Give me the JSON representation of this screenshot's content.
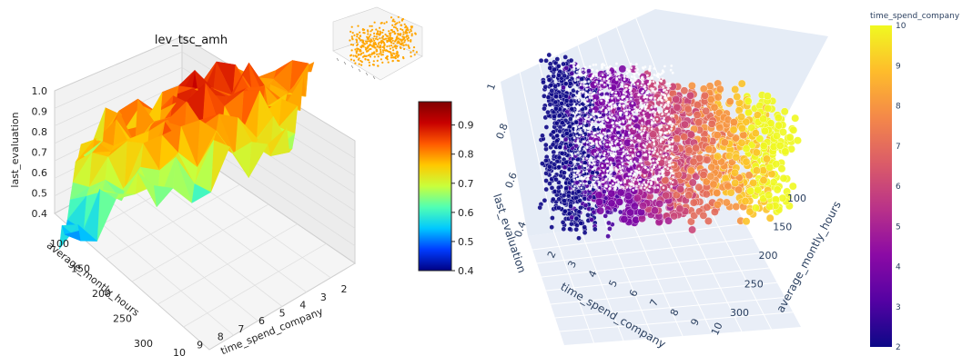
{
  "chart_data": [
    {
      "type": "surface3d",
      "title": "lev_tsc_amh",
      "xlabel": "time_spend_company",
      "ylabel": "average_montly_hours",
      "zlabel": "last_evaluation",
      "x_ticks": [
        "10",
        "9",
        "8",
        "7",
        "6",
        "5",
        "4",
        "3",
        "2"
      ],
      "y_ticks": [
        "100",
        "150",
        "200",
        "250",
        "300"
      ],
      "z_ticks": [
        "0.4",
        "0.5",
        "0.6",
        "0.7",
        "0.8",
        "0.9",
        "1.0"
      ],
      "xlim": [
        2,
        10
      ],
      "ylim": [
        96,
        310
      ],
      "zlim": [
        0.36,
        1.0
      ],
      "colormap": "jet",
      "colorbar": {
        "ticks": [
          "0.4",
          "0.5",
          "0.6",
          "0.7",
          "0.8",
          "0.9"
        ],
        "range": [
          0.4,
          0.98
        ]
      }
    },
    {
      "type": "scatter3d",
      "role": "inset",
      "color": "#ffa500"
    },
    {
      "type": "scatter3d",
      "xlabel": "time_spend_company",
      "ylabel": "average_montly_hours",
      "zlabel": "last_evaluation",
      "x_ticks": [
        "2",
        "3",
        "4",
        "5",
        "6",
        "7",
        "8",
        "9",
        "10"
      ],
      "y_ticks": [
        "100",
        "150",
        "200",
        "250",
        "300"
      ],
      "z_ticks": [
        "0.4",
        "0.6",
        "0.8",
        "1"
      ],
      "xlim": [
        2,
        10
      ],
      "ylim": [
        96,
        310
      ],
      "zlim": [
        0.36,
        1.0
      ],
      "colormap": "plasma",
      "color_by": "time_spend_company",
      "colorbar": {
        "title": "time_spend_company",
        "ticks": [
          "2",
          "3",
          "4",
          "5",
          "6",
          "7",
          "8",
          "9",
          "10"
        ],
        "range": [
          2,
          10
        ]
      }
    }
  ]
}
